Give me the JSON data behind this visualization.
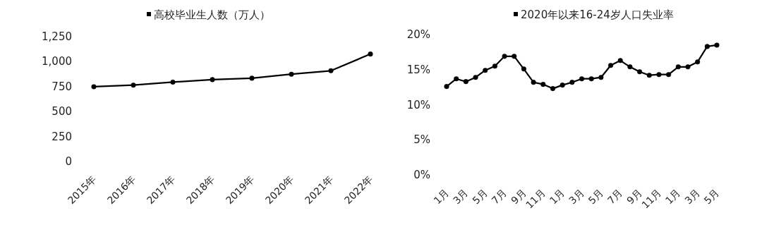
{
  "chart_data": [
    {
      "type": "line",
      "categories": [
        "2015年",
        "2016年",
        "2017年",
        "2018年",
        "2019年",
        "2020年",
        "2021年",
        "2022年"
      ],
      "series": [
        {
          "name": "高校毕业生人数（万人）",
          "color": "#000000",
          "values": [
            749,
            765,
            795,
            820,
            834,
            874,
            909,
            1076
          ]
        }
      ],
      "ylim": [
        0,
        1250
      ],
      "yticks": [
        0,
        250,
        500,
        750,
        {
          "value": 1000,
          "label": "1,000"
        },
        {
          "value": 1250,
          "label": "1,250"
        }
      ],
      "legend": "top",
      "marker": "circle",
      "line_style": "solid",
      "grid": false
    },
    {
      "type": "line",
      "categories": [
        "1月",
        null,
        "3月",
        null,
        "5月",
        null,
        "7月",
        null,
        "9月",
        null,
        "11月",
        null,
        "1月",
        null,
        "3月",
        null,
        "5月",
        null,
        "7月",
        null,
        "9月",
        null,
        "11月",
        null,
        "1月",
        null,
        "3月",
        null,
        "5月"
      ],
      "series": [
        {
          "name": "2020年以来16-24岁人口失业率",
          "color": "#000000",
          "values": [
            12.6,
            13.7,
            13.3,
            13.9,
            14.9,
            15.5,
            16.9,
            16.9,
            15.1,
            13.2,
            12.9,
            12.3,
            12.8,
            13.2,
            13.7,
            13.7,
            13.9,
            15.6,
            16.3,
            15.4,
            14.7,
            14.2,
            14.3,
            14.3,
            15.4,
            15.4,
            16.1,
            18.3,
            18.5
          ]
        }
      ],
      "ylim": [
        0,
        20
      ],
      "yticks": [
        {
          "value": 0,
          "label": "0%"
        },
        {
          "value": 5,
          "label": "5%"
        },
        {
          "value": 10,
          "label": "10%"
        },
        {
          "value": 15,
          "label": "15%"
        },
        {
          "value": 20,
          "label": "20%"
        }
      ],
      "legend": "top",
      "marker": "circle",
      "line_style": "solid",
      "grid": false
    }
  ]
}
